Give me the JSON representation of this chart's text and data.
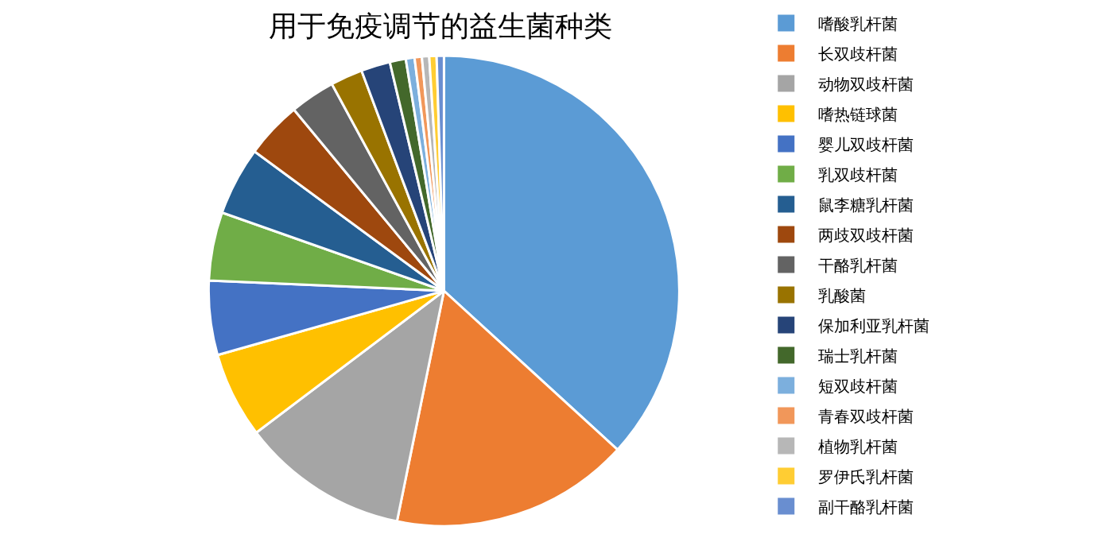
{
  "chart_data": {
    "type": "pie",
    "title": "用于免疫调节的益生菌种类",
    "categories": [
      "嗜酸乳杆菌",
      "长双歧杆菌",
      "动物双歧杆菌",
      "嗜热链球菌",
      "婴儿双歧杆菌",
      "乳双歧杆菌",
      "鼠李糖乳杆菌",
      "两歧双歧杆菌",
      "干酪乳杆菌",
      "乳酸菌",
      "保加利亚乳杆菌",
      "瑞士乳杆菌",
      "短双歧杆菌",
      "青春双歧杆菌",
      "植物乳杆菌",
      "罗伊氏乳杆菌",
      "副干酪乳杆菌"
    ],
    "values": [
      36.8,
      16.4,
      11.5,
      5.9,
      5.1,
      4.7,
      4.7,
      3.9,
      3.1,
      2.2,
      2.0,
      1.1,
      0.6,
      0.5,
      0.5,
      0.5,
      0.5
    ],
    "colors": [
      "#5b9bd5",
      "#ed7d31",
      "#a5a5a5",
      "#ffc000",
      "#4472c4",
      "#70ad47",
      "#255e91",
      "#9e480e",
      "#636363",
      "#997300",
      "#264478",
      "#43682b",
      "#7cafdd",
      "#f1975a",
      "#b7b7b7",
      "#ffcd33",
      "#698ed0"
    ],
    "legend": "right"
  }
}
